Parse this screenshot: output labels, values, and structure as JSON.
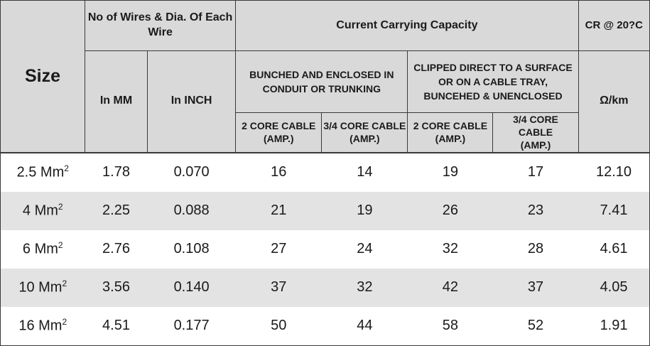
{
  "header": {
    "size": "Size",
    "wires_group": "No of Wires  & Dia. Of Each Wire",
    "capacity_group": "Current Carrying Capacity",
    "cr_group": "CR @ 20?C",
    "in_mm": "In MM",
    "in_inch": "In INCH",
    "bunched": "BUNCHED AND ENCLOSED IN CONDUIT OR TRUNKING",
    "clipped": "CLIPPED DIRECT TO A SURFACE OR ON A CABLE TRAY, BUNCEHED & UNENCLOSED",
    "ohm_unit": "Ω/km",
    "two_core_line1": "2 CORE CABLE",
    "three_four_core_line1": "3/4 CORE CABLE",
    "amp_line2": "(AMP.)"
  },
  "rows": [
    {
      "size": "2.5 Mm",
      "sup": "2",
      "mm": "1.78",
      "inch": "0.070",
      "b2": "16",
      "b34": "14",
      "c2": "19",
      "c34": "17",
      "cr": "12.10"
    },
    {
      "size": "4 Mm",
      "sup": "2",
      "mm": "2.25",
      "inch": "0.088",
      "b2": "21",
      "b34": "19",
      "c2": "26",
      "c34": "23",
      "cr": "7.41"
    },
    {
      "size": "6 Mm",
      "sup": "2",
      "mm": "2.76",
      "inch": "0.108",
      "b2": "27",
      "b34": "24",
      "c2": "32",
      "c34": "28",
      "cr": "4.61"
    },
    {
      "size": "10 Mm",
      "sup": "2",
      "mm": "3.56",
      "inch": "0.140",
      "b2": "37",
      "b34": "32",
      "c2": "42",
      "c34": "37",
      "cr": "4.05"
    },
    {
      "size": "16 Mm",
      "sup": "2",
      "mm": "4.51",
      "inch": "0.177",
      "b2": "50",
      "b34": "44",
      "c2": "58",
      "c34": "52",
      "cr": "1.91"
    }
  ]
}
